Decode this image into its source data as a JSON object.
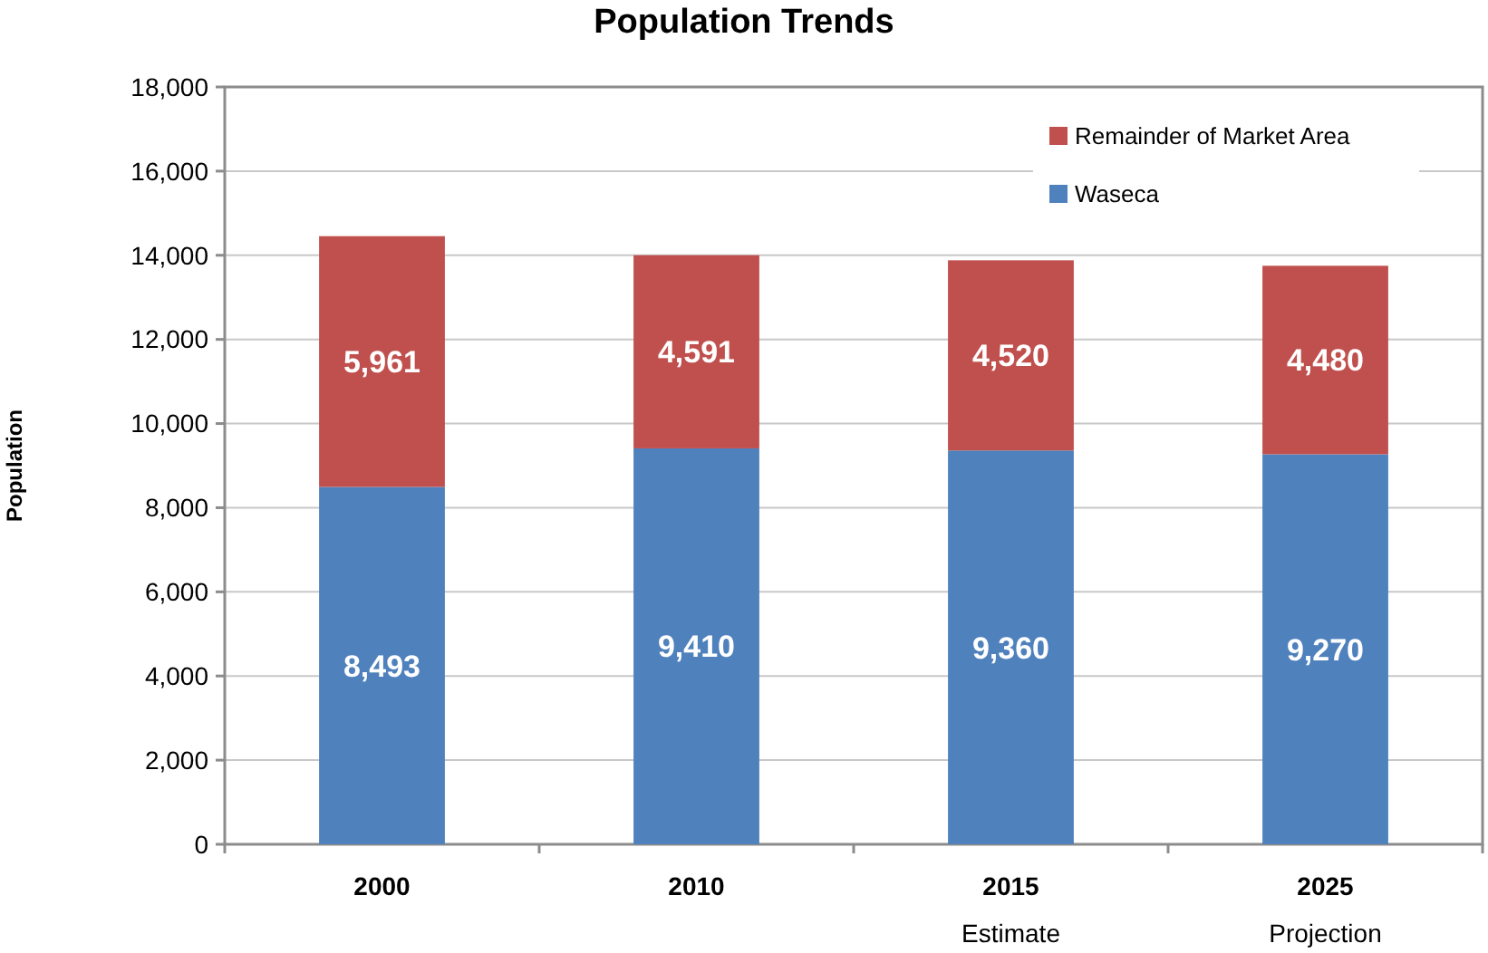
{
  "chart_data": {
    "type": "bar",
    "title": "Population Trends",
    "ylabel": "Population",
    "categories": [
      "2000",
      "2010",
      "2015\nEstimate",
      "2025\nProjection"
    ],
    "series": [
      {
        "name": "Waseca",
        "color": "#4f81bd",
        "values": [
          8493,
          9410,
          9360,
          9270
        ],
        "value_labels": [
          "8,493",
          "9,410",
          "9,360",
          "9,270"
        ]
      },
      {
        "name": "Remainder of Market Area",
        "color": "#c0504d",
        "values": [
          5961,
          4591,
          4520,
          4480
        ],
        "value_labels": [
          "5,961",
          "4,591",
          "4,520",
          "4,480"
        ]
      }
    ],
    "stacked": true,
    "ylim": [
      0,
      18000
    ],
    "yticks": [
      {
        "value": 0,
        "label": "0"
      },
      {
        "value": 2000,
        "label": "2,000"
      },
      {
        "value": 4000,
        "label": "4,000"
      },
      {
        "value": 6000,
        "label": "6,000"
      },
      {
        "value": 8000,
        "label": "8,000"
      },
      {
        "value": 10000,
        "label": "10,000"
      },
      {
        "value": 12000,
        "label": "12,000"
      },
      {
        "value": 14000,
        "label": "14,000"
      },
      {
        "value": 16000,
        "label": "16,000"
      },
      {
        "value": 18000,
        "label": "18,000"
      }
    ],
    "grid": "y",
    "legend": "top right"
  }
}
